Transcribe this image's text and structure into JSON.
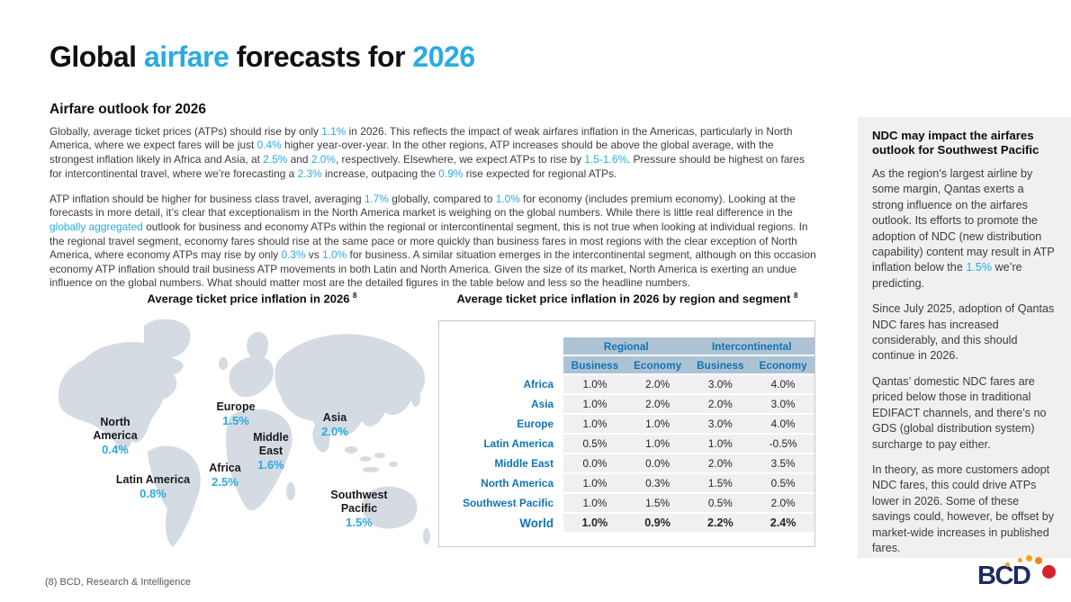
{
  "colors": {
    "accent_cyan": "#29abe2",
    "table_blue": "#1173b5",
    "table_header_bg": "#adc3d4",
    "row_bg": "#f0f0f2",
    "sidebar_bg": "#f0f0f0",
    "map_fill": "#d4dbe3",
    "logo_navy": "#1d2b5f",
    "logo_orange": "#f7a11a",
    "logo_red": "#d6212f"
  },
  "header": {
    "title_segments": [
      {
        "t": "Global "
      },
      {
        "t": "airfare",
        "h": true
      },
      {
        "t": " forecasts for "
      },
      {
        "t": "2026",
        "h": true
      }
    ]
  },
  "article": {
    "heading": "Airfare outlook for 2026",
    "paragraphs": [
      [
        {
          "t": "Globally, average ticket prices (ATPs) should rise by only "
        },
        {
          "t": "1.1%",
          "h": true
        },
        {
          "t": " in 2026. This reflects the impact of weak airfares inflation in the Americas, particularly in North America, where we expect fares will be just "
        },
        {
          "t": "0.4%",
          "h": true
        },
        {
          "t": " higher year-over-year. In the other regions, ATP increases should be above the global average, with the strongest inflation likely in Africa and Asia, at "
        },
        {
          "t": "2.5%",
          "h": true
        },
        {
          "t": " and "
        },
        {
          "t": "2.0%",
          "h": true
        },
        {
          "t": ", respectively. Elsewhere, we expect ATPs to rise by "
        },
        {
          "t": "1.5-1.6%",
          "h": true
        },
        {
          "t": ". Pressure should be highest on fares for intercontinental travel, where we’re forecasting a "
        },
        {
          "t": "2.3%",
          "h": true
        },
        {
          "t": " increase, outpacing the "
        },
        {
          "t": "0.9%",
          "h": true
        },
        {
          "t": " rise expected for regional ATPs."
        }
      ],
      [
        {
          "t": "ATP inflation should be higher for business class travel, averaging "
        },
        {
          "t": "1.7%",
          "h": true
        },
        {
          "t": " globally, compared to "
        },
        {
          "t": "1.0%",
          "h": true
        },
        {
          "t": " for economy (includes premium economy). Looking at the forecasts in more detail, it’s clear that exceptionalism in the North America market is weighing on the global numbers. While there is little real difference in the "
        },
        {
          "t": "globally aggregated",
          "h": true
        },
        {
          "t": " outlook for business and economy ATPs within the regional or intercontinental segment, this is not true when looking at individual regions. In the regional travel segment, economy fares should rise at the same pace or more quickly than business fares in most regions with the clear exception of North America, where economy ATPs may rise by only "
        },
        {
          "t": "0.3%",
          "h": true
        },
        {
          "t": " vs "
        },
        {
          "t": "1.0%",
          "h": true
        },
        {
          "t": " for business. A similar situation emerges in the intercontinental segment, although on this occasion economy ATP inflation should trail business ATP movements in both Latin and North America. Given the size of its market, North America is exerting an undue influence on the global numbers. What should matter most are the detailed figures in the table below and less so the headline numbers."
        }
      ]
    ]
  },
  "map": {
    "title": "Average ticket price inflation in 2026",
    "title_sup": "8",
    "labels": [
      {
        "name": "North America",
        "value": "0.4%"
      },
      {
        "name": "Latin America",
        "value": "0.8%"
      },
      {
        "name": "Europe",
        "value": "1.5%"
      },
      {
        "name": "Africa",
        "value": "2.5%"
      },
      {
        "name": "Middle East",
        "value": "1.6%"
      },
      {
        "name": "Asia",
        "value": "2.0%"
      },
      {
        "name": "Southwest Pacific",
        "value": "1.5%"
      }
    ]
  },
  "table": {
    "title": "Average ticket price inflation in 2026 by region and segment",
    "title_sup": "8",
    "group_headers": [
      "Regional",
      "Intercontinental"
    ],
    "sub_headers": [
      "Business",
      "Economy",
      "Business",
      "Economy"
    ],
    "rows": [
      {
        "region": "Africa",
        "values": [
          "1.0%",
          "2.0%",
          "3.0%",
          "4.0%"
        ]
      },
      {
        "region": "Asia",
        "values": [
          "1.0%",
          "2.0%",
          "2.0%",
          "3.0%"
        ]
      },
      {
        "region": "Europe",
        "values": [
          "1.0%",
          "1.0%",
          "3.0%",
          "4.0%"
        ]
      },
      {
        "region": "Latin America",
        "values": [
          "0.5%",
          "1.0%",
          "1.0%",
          "-0.5%"
        ]
      },
      {
        "region": "Middle East",
        "values": [
          "0.0%",
          "0.0%",
          "2.0%",
          "3.5%"
        ]
      },
      {
        "region": "North America",
        "values": [
          "1.0%",
          "0.3%",
          "1.5%",
          "0.5%"
        ]
      },
      {
        "region": "Southwest Pacific",
        "values": [
          "1.0%",
          "1.5%",
          "0.5%",
          "2.0%"
        ]
      },
      {
        "region": "World",
        "values": [
          "1.0%",
          "0.9%",
          "2.2%",
          "2.4%"
        ]
      }
    ]
  },
  "sidebar": {
    "heading": "NDC may impact the airfares outlook for Southwest Pacific",
    "paragraphs": [
      [
        {
          "t": "As the region’s largest airline by some margin, Qantas exerts a strong influence on the airfares outlook. Its efforts to promote the adoption of NDC (new distribution capability) content may result in ATP inflation below the "
        },
        {
          "t": "1.5%",
          "h": true
        },
        {
          "t": " we’re predicting."
        }
      ],
      [
        {
          "t": "Since July 2025, adoption of Qantas NDC fares has increased considerably, and this should continue in 2026."
        }
      ],
      [
        {
          "t": "Qantas’ domestic NDC fares are priced below those in traditional EDIFACT channels, and there’s no GDS (global distribution system) surcharge to pay either."
        }
      ],
      [
        {
          "t": "In theory, as more customers adopt NDC fares, this could drive ATPs lower in 2026. Some of these savings could, however, be offset by market-wide increases in published fares."
        }
      ]
    ]
  },
  "footer": {
    "note": "(8) BCD, Research & Intelligence",
    "logo_text": "BCD"
  },
  "chart_data": [
    {
      "type": "map",
      "title": "Average ticket price inflation in 2026",
      "series": [
        {
          "name": "North America",
          "value": 0.4
        },
        {
          "name": "Latin America",
          "value": 0.8
        },
        {
          "name": "Europe",
          "value": 1.5
        },
        {
          "name": "Africa",
          "value": 2.5
        },
        {
          "name": "Middle East",
          "value": 1.6
        },
        {
          "name": "Asia",
          "value": 2.0
        },
        {
          "name": "Southwest Pacific",
          "value": 1.5
        }
      ]
    },
    {
      "type": "table",
      "title": "Average ticket price inflation in 2026 by region and segment",
      "columns": [
        "Regional Business",
        "Regional Economy",
        "Intercontinental Business",
        "Intercontinental Economy"
      ],
      "rows": [
        {
          "region": "Africa",
          "values": [
            1.0,
            2.0,
            3.0,
            4.0
          ]
        },
        {
          "region": "Asia",
          "values": [
            1.0,
            2.0,
            2.0,
            3.0
          ]
        },
        {
          "region": "Europe",
          "values": [
            1.0,
            1.0,
            3.0,
            4.0
          ]
        },
        {
          "region": "Latin America",
          "values": [
            0.5,
            1.0,
            1.0,
            -0.5
          ]
        },
        {
          "region": "Middle East",
          "values": [
            0.0,
            0.0,
            2.0,
            3.5
          ]
        },
        {
          "region": "North America",
          "values": [
            1.0,
            0.3,
            1.5,
            0.5
          ]
        },
        {
          "region": "Southwest Pacific",
          "values": [
            1.0,
            1.5,
            0.5,
            2.0
          ]
        },
        {
          "region": "World",
          "values": [
            1.0,
            0.9,
            2.2,
            2.4
          ]
        }
      ]
    }
  ]
}
